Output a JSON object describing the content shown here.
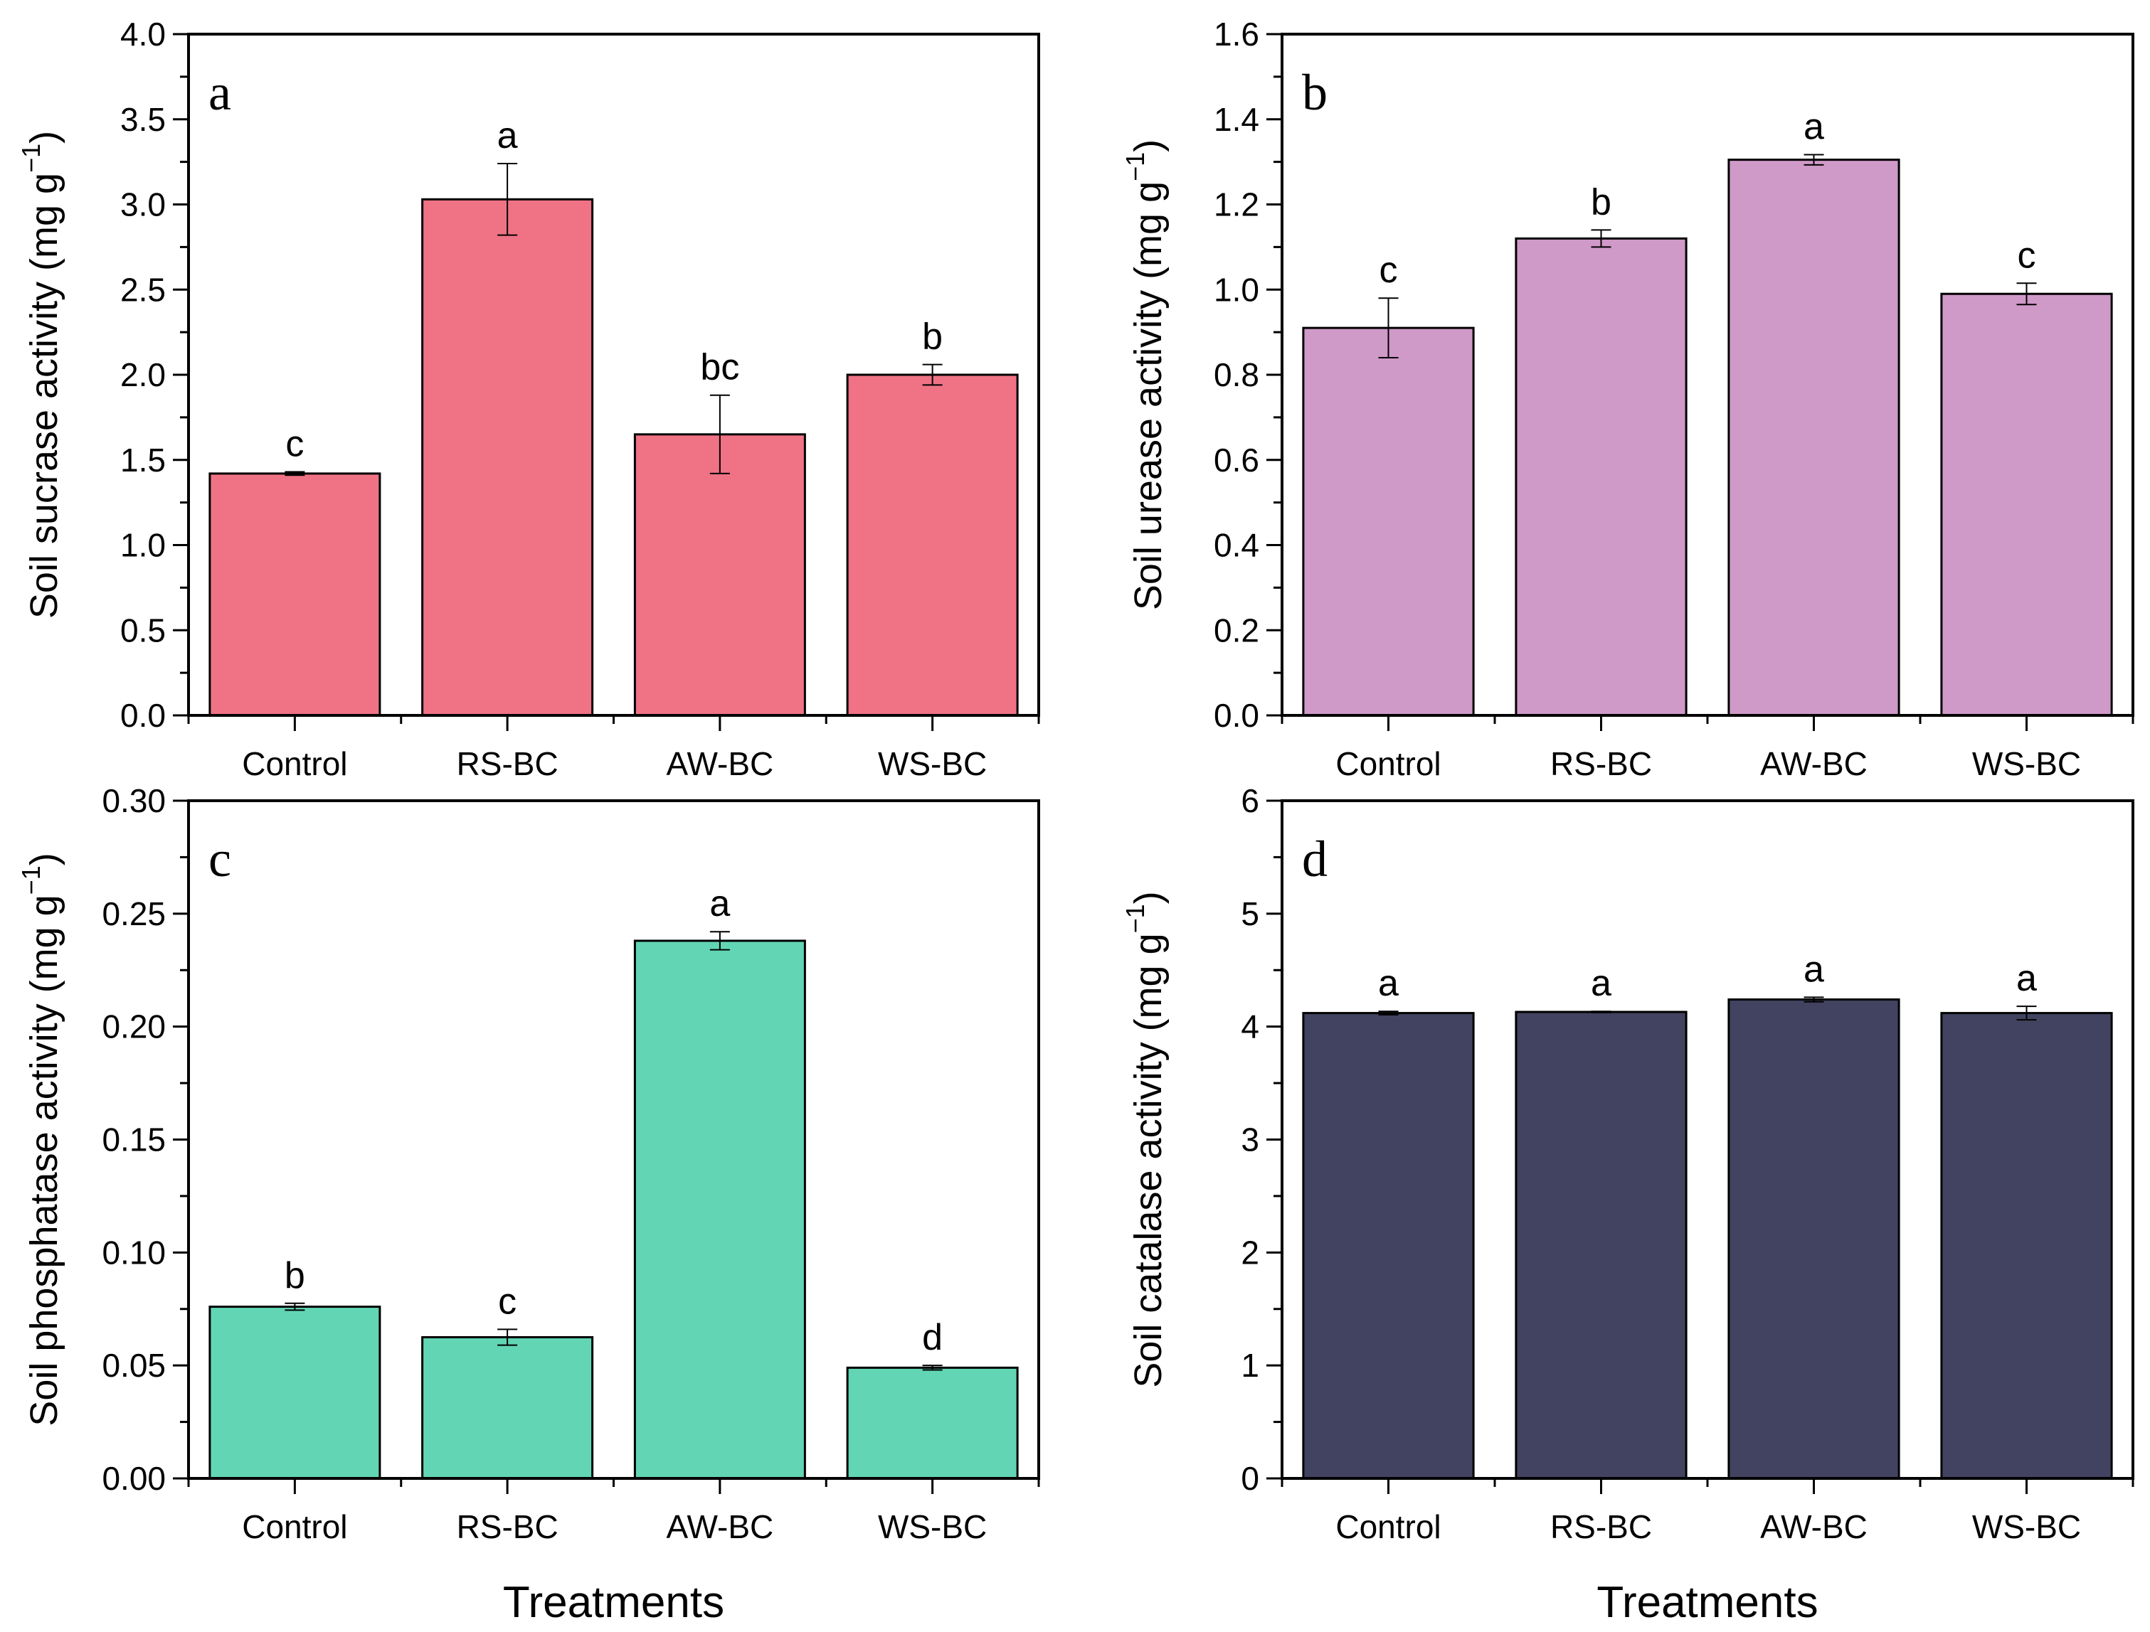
{
  "chart_data": [
    {
      "type": "bar",
      "panel_label": "a",
      "categories": [
        "Control",
        "RS-BC",
        "AW-BC",
        "WS-BC"
      ],
      "values": [
        1.42,
        3.03,
        1.65,
        2.0
      ],
      "errors": [
        0.01,
        0.21,
        0.23,
        0.06
      ],
      "significance": [
        "c",
        "a",
        "bc",
        "b"
      ],
      "ylabel": "Soil sucrase activity (mg g",
      "ylabel_sup": "−1",
      "ylabel_end": ")",
      "xlabel": "",
      "ylim": [
        0,
        4.0
      ],
      "yticks": [
        "0.0",
        "0.5",
        "1.0",
        "1.5",
        "2.0",
        "2.5",
        "3.0",
        "3.5",
        "4.0"
      ],
      "color": "#EF7385"
    },
    {
      "type": "bar",
      "panel_label": "b",
      "categories": [
        "Control",
        "RS-BC",
        "AW-BC",
        "WS-BC"
      ],
      "values": [
        0.91,
        1.12,
        1.305,
        0.99
      ],
      "errors": [
        0.07,
        0.02,
        0.012,
        0.025
      ],
      "significance": [
        "c",
        "b",
        "a",
        "c"
      ],
      "ylabel": "Soil urease activity (mg g",
      "ylabel_sup": "−1",
      "ylabel_end": ")",
      "xlabel": "",
      "ylim": [
        0,
        1.6
      ],
      "yticks": [
        "0.0",
        "0.2",
        "0.4",
        "0.6",
        "0.8",
        "1.0",
        "1.2",
        "1.4",
        "1.6"
      ],
      "color": "#CF99C8"
    },
    {
      "type": "bar",
      "panel_label": "c",
      "categories": [
        "Control",
        "RS-BC",
        "AW-BC",
        "WS-BC"
      ],
      "values": [
        0.076,
        0.0625,
        0.238,
        0.049
      ],
      "errors": [
        0.0015,
        0.0035,
        0.004,
        0.001
      ],
      "significance": [
        "b",
        "c",
        "a",
        "d"
      ],
      "ylabel": "Soil phosphatase activity (mg g",
      "ylabel_sup": "−1",
      "ylabel_end": ")",
      "xlabel": "Treatments",
      "ylim": [
        0,
        0.3
      ],
      "yticks": [
        "0.00",
        "0.05",
        "0.10",
        "0.15",
        "0.20",
        "0.25",
        "0.30"
      ],
      "color": "#62D6B4"
    },
    {
      "type": "bar",
      "panel_label": "d",
      "categories": [
        "Control",
        "RS-BC",
        "AW-BC",
        "WS-BC"
      ],
      "values": [
        4.12,
        4.13,
        4.24,
        4.12
      ],
      "errors": [
        0.015,
        0.005,
        0.02,
        0.06
      ],
      "significance": [
        "a",
        "a",
        "a",
        "a"
      ],
      "ylabel": "Soil catalase activity (mg g",
      "ylabel_sup": "−1",
      "ylabel_end": ")",
      "xlabel": "Treatments",
      "ylim": [
        0,
        6
      ],
      "yticks": [
        "0",
        "1",
        "2",
        "3",
        "4",
        "5",
        "6"
      ],
      "color": "#424360"
    }
  ]
}
